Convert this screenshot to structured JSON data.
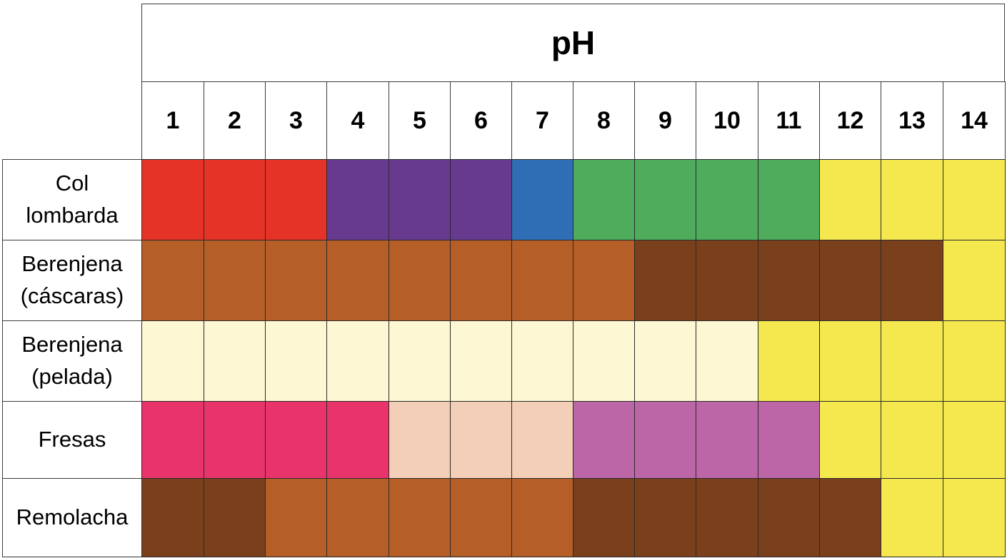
{
  "chart_data": {
    "type": "table",
    "title": "pH",
    "columns": [
      "1",
      "2",
      "3",
      "4",
      "5",
      "6",
      "7",
      "8",
      "9",
      "10",
      "11",
      "12",
      "13",
      "14"
    ],
    "palette": {
      "red": "#e53427",
      "purple": "#673a90",
      "blue": "#2f6eb5",
      "green": "#4eac5c",
      "yellow": "#f5e84f",
      "orange_brown": "#b65e28",
      "dark_brown": "#7a401b",
      "cream": "#fdf7d3",
      "pink": "#e8336b",
      "peach": "#f3cfb7",
      "mauve": "#bc66a7"
    },
    "rows": [
      {
        "label": "Col\nlombarda",
        "colors": [
          "red",
          "red",
          "red",
          "purple",
          "purple",
          "purple",
          "blue",
          "green",
          "green",
          "green",
          "green",
          "yellow",
          "yellow",
          "yellow"
        ]
      },
      {
        "label": "Berenjena\n(cáscaras)",
        "colors": [
          "orange_brown",
          "orange_brown",
          "orange_brown",
          "orange_brown",
          "orange_brown",
          "orange_brown",
          "orange_brown",
          "orange_brown",
          "dark_brown",
          "dark_brown",
          "dark_brown",
          "dark_brown",
          "dark_brown",
          "yellow"
        ]
      },
      {
        "label": "Berenjena\n(pelada)",
        "colors": [
          "cream",
          "cream",
          "cream",
          "cream",
          "cream",
          "cream",
          "cream",
          "cream",
          "cream",
          "cream",
          "yellow",
          "yellow",
          "yellow",
          "yellow"
        ]
      },
      {
        "label": "Fresas",
        "colors": [
          "pink",
          "pink",
          "pink",
          "pink",
          "peach",
          "peach",
          "peach",
          "mauve",
          "mauve",
          "mauve",
          "mauve",
          "yellow",
          "yellow",
          "yellow"
        ]
      },
      {
        "label": "Remolacha",
        "colors": [
          "dark_brown",
          "dark_brown",
          "orange_brown",
          "orange_brown",
          "orange_brown",
          "orange_brown",
          "orange_brown",
          "dark_brown",
          "dark_brown",
          "dark_brown",
          "dark_brown",
          "dark_brown",
          "yellow",
          "yellow"
        ]
      }
    ]
  }
}
